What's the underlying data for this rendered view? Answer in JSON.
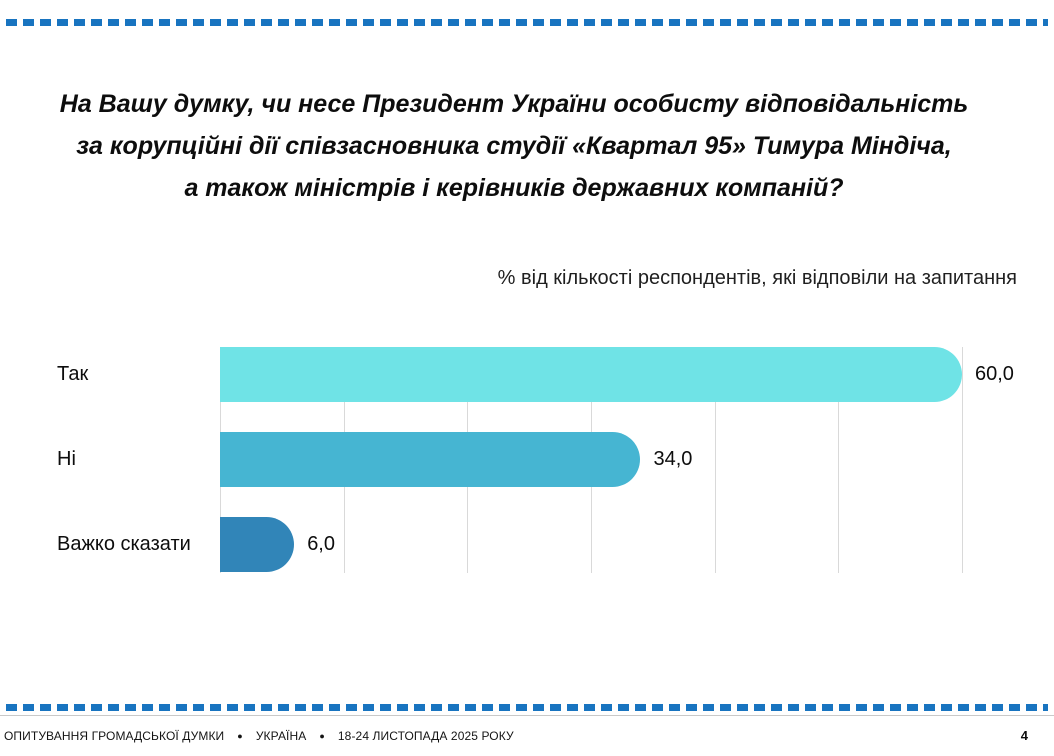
{
  "question": {
    "lines": [
      "На Вашу думку, чи несе Президент України особисту відповідальність",
      "за корупційні дії співзасновника студії «Квартал 95» Тимура Міндіча,",
      "а також міністрів і керівників державних компаній?"
    ]
  },
  "chart_data": {
    "type": "bar",
    "orientation": "horizontal",
    "title": "",
    "subtitle": "% від кількості респондентів, які відповіли на запитання",
    "categories": [
      "Так",
      "Ні",
      "Важко сказати"
    ],
    "values": [
      60.0,
      34.0,
      6.0
    ],
    "value_labels": [
      "60,0",
      "34,0",
      "6,0"
    ],
    "xlabel": "",
    "ylabel": "",
    "xlim": [
      0,
      60
    ],
    "grid_step": 10,
    "grid": true,
    "ticks_labeled": false,
    "legend": false,
    "bar_colors": [
      "#6fe3e6",
      "#46b5d2",
      "#3185b8"
    ]
  },
  "colors": {
    "accent_dashed_line": "#1874c0",
    "gridline": "#d9d9d9"
  },
  "footer": {
    "items": [
      "ОПИТУВАННЯ ГРОМАДСЬКОЇ ДУМКИ",
      "УКРАЇНА",
      "18-24 ЛИСТОПАДА 2025 РОКУ"
    ],
    "separator": "●",
    "page_number": "4"
  }
}
